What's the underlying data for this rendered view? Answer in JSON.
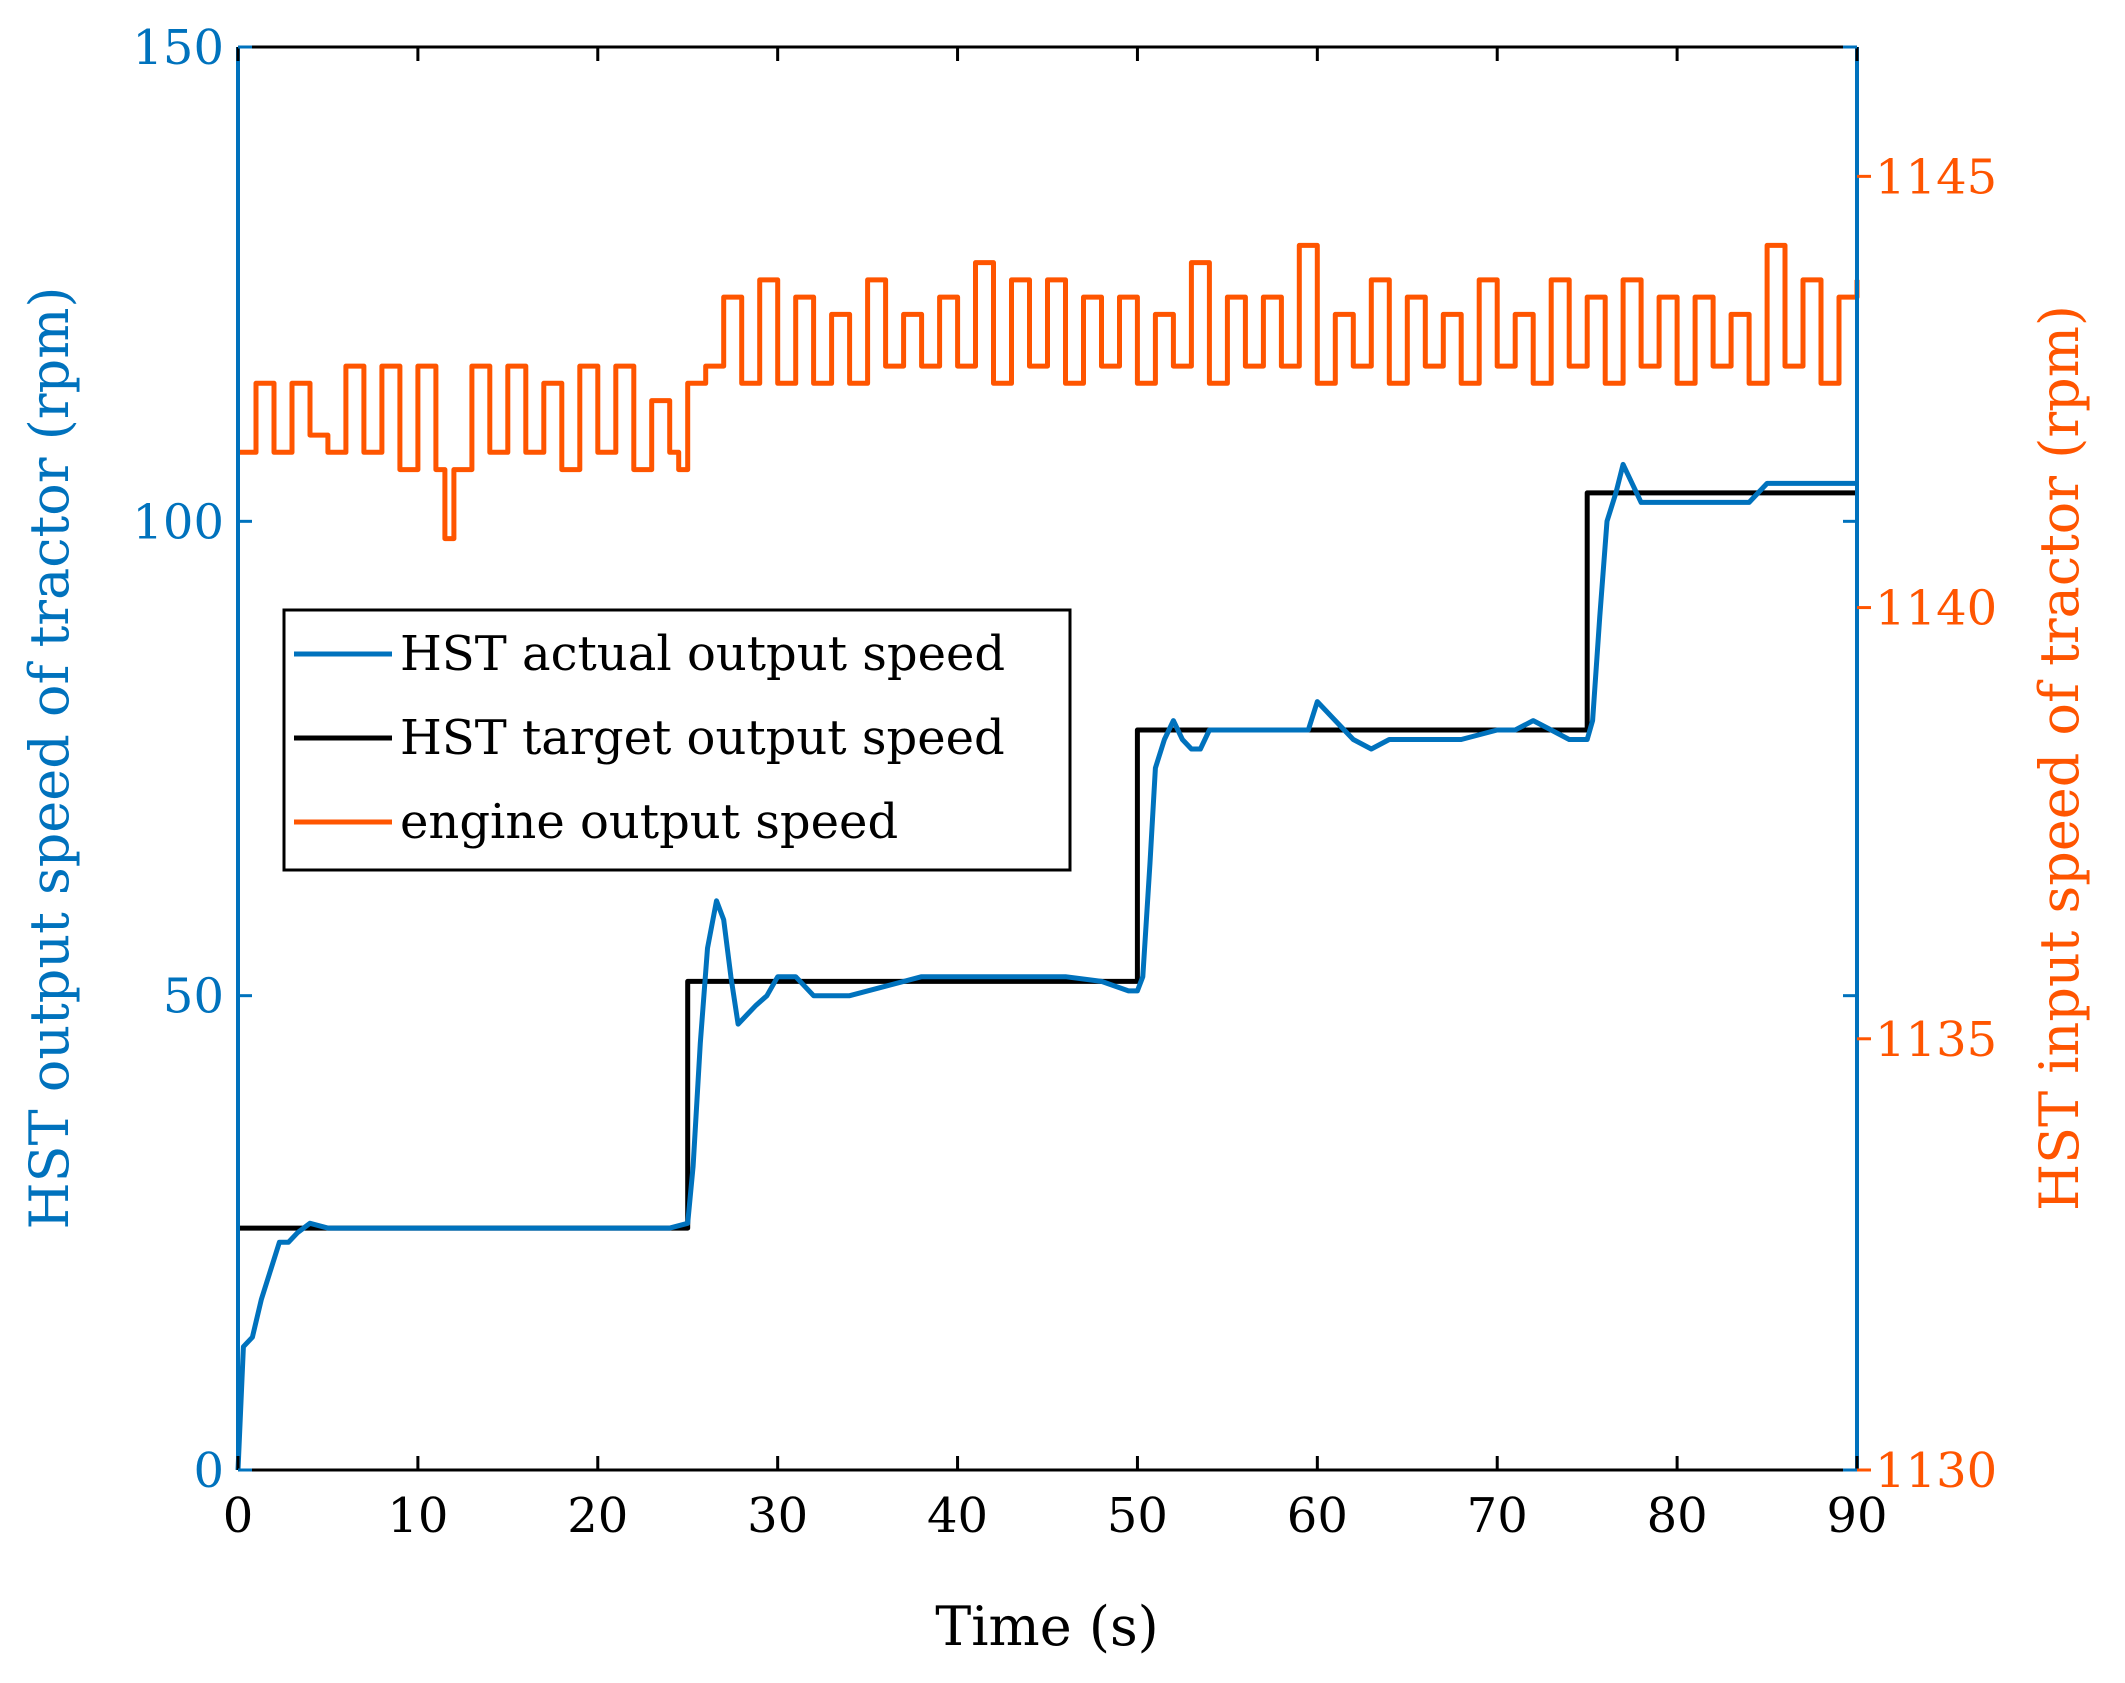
{
  "colors": {
    "actual": "#0072BD",
    "target": "#000000",
    "engine": "#FF5500",
    "left_axis": "#0072BD",
    "right_axis": "#FF5500",
    "frame": "#000000"
  },
  "chart_data": {
    "type": "line",
    "title": "",
    "xlabel": "Time (s)",
    "ylabel_left": "HST output speed of tractor (rpm)",
    "ylabel_right": "HST input speed of tractor (rpm)",
    "xlim": [
      0,
      90
    ],
    "ylim_left": [
      0,
      150
    ],
    "ylim_right": [
      1130,
      1146.5
    ],
    "xticks": [
      0,
      10,
      20,
      30,
      40,
      50,
      60,
      70,
      80,
      90
    ],
    "yticks_left": [
      0,
      50,
      100,
      150
    ],
    "yticks_right": [
      1130,
      1135,
      1140,
      1145
    ],
    "grid": false,
    "legend_position": "center-left",
    "legend": [
      "HST actual output speed",
      "HST target output speed",
      "engine output speed"
    ],
    "series": [
      {
        "name": "HST actual output speed",
        "axis": "left",
        "x": [
          0,
          0.3,
          0.8,
          1.3,
          1.8,
          2.3,
          2.8,
          3.3,
          4,
          5,
          8,
          12,
          16,
          20,
          22,
          24,
          25,
          25.3,
          25.7,
          26.1,
          26.6,
          27.0,
          27.4,
          27.8,
          28.3,
          28.8,
          29.4,
          30.0,
          31,
          32,
          33,
          34,
          36,
          38,
          40,
          42,
          44,
          46,
          48,
          49.5,
          50,
          50.3,
          50.7,
          51.0,
          51.5,
          52.0,
          52.5,
          53.0,
          53.5,
          54,
          56,
          58,
          59.5,
          60,
          61,
          62,
          63,
          64,
          66,
          68,
          70,
          71,
          72,
          73,
          74,
          75,
          75.3,
          75.7,
          76.1,
          76.6,
          77.0,
          77.5,
          78.0,
          79,
          80,
          82,
          84,
          85,
          86,
          88,
          90
        ],
        "y": [
          0,
          13,
          14,
          18,
          21,
          24,
          24,
          25,
          26,
          25.5,
          25.5,
          25.5,
          25.5,
          25.5,
          25.5,
          25.5,
          26,
          32,
          45,
          55,
          60,
          58,
          52,
          47,
          48,
          49,
          50,
          52,
          52,
          50,
          50,
          50,
          51,
          52,
          52,
          52,
          52,
          52,
          51.5,
          50.5,
          50.5,
          52,
          64,
          74,
          77,
          79,
          77,
          76,
          76,
          78,
          78,
          78,
          78,
          81,
          79,
          77,
          76,
          77,
          77,
          77,
          78,
          78,
          79,
          78,
          77,
          77,
          79,
          90,
          100,
          103,
          106,
          104,
          102,
          102,
          102,
          102,
          102,
          104,
          104,
          104,
          104
        ]
      },
      {
        "name": "HST target output speed",
        "axis": "left",
        "x": [
          0,
          25,
          25,
          50,
          50,
          75,
          75,
          90
        ],
        "y": [
          25.5,
          25.5,
          51.5,
          51.5,
          78,
          78,
          103,
          103
        ]
      },
      {
        "name": "engine output speed",
        "axis": "right",
        "x": [
          0,
          1,
          2,
          3,
          4,
          5,
          6,
          7,
          8,
          9,
          10,
          11,
          11.5,
          12,
          13,
          14,
          15,
          16,
          17,
          18,
          19,
          20,
          21,
          22,
          23,
          24,
          24.5,
          25,
          26,
          27,
          28,
          29,
          30,
          31,
          32,
          33,
          34,
          35,
          36,
          37,
          38,
          39,
          40,
          41,
          42,
          43,
          44,
          45,
          46,
          47,
          48,
          49,
          50,
          51,
          52,
          53,
          54,
          55,
          56,
          57,
          58,
          59,
          60,
          61,
          62,
          63,
          64,
          65,
          66,
          67,
          68,
          69,
          70,
          71,
          72,
          73,
          74,
          75,
          76,
          77,
          78,
          79,
          80,
          81,
          82,
          83,
          84,
          85,
          86,
          87,
          88,
          89,
          90
        ],
        "y": [
          1141.8,
          1142.6,
          1141.8,
          1142.6,
          1142.0,
          1141.8,
          1142.8,
          1141.8,
          1142.8,
          1141.6,
          1142.8,
          1141.6,
          1140.8,
          1141.6,
          1142.8,
          1141.8,
          1142.8,
          1141.8,
          1142.6,
          1141.6,
          1142.8,
          1141.8,
          1142.8,
          1141.6,
          1142.4,
          1141.8,
          1141.6,
          1142.6,
          1142.8,
          1143.6,
          1142.6,
          1143.8,
          1142.6,
          1143.6,
          1142.6,
          1143.4,
          1142.6,
          1143.8,
          1142.8,
          1143.4,
          1142.8,
          1143.6,
          1142.8,
          1144.0,
          1142.6,
          1143.8,
          1142.8,
          1143.8,
          1142.6,
          1143.6,
          1142.8,
          1143.6,
          1142.6,
          1143.4,
          1142.8,
          1144.0,
          1142.6,
          1143.6,
          1142.8,
          1143.6,
          1142.8,
          1144.2,
          1142.6,
          1143.4,
          1142.8,
          1143.8,
          1142.6,
          1143.6,
          1142.8,
          1143.4,
          1142.6,
          1143.8,
          1142.8,
          1143.4,
          1142.6,
          1143.8,
          1142.8,
          1143.6,
          1142.6,
          1143.8,
          1142.8,
          1143.6,
          1142.6,
          1143.6,
          1142.8,
          1143.4,
          1142.6,
          1144.2,
          1142.8,
          1143.8,
          1142.6,
          1143.6,
          1143.8
        ]
      }
    ]
  }
}
